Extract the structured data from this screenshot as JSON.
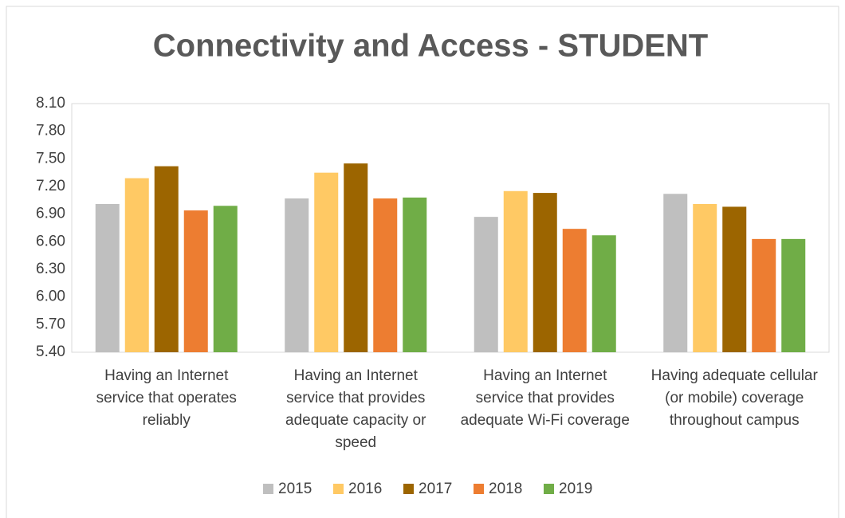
{
  "chart_data": {
    "type": "bar",
    "title": "Connectivity and Access - STUDENT",
    "categories": [
      "Having an Internet service that operates reliably",
      "Having an Internet service that provides adequate capacity or speed",
      "Having an Internet service that provides adequate Wi-Fi coverage",
      "Having adequate cellular (or mobile) coverage throughout campus"
    ],
    "series": [
      {
        "name": "2015",
        "color": "#bfbfbf",
        "values": [
          7.01,
          7.07,
          6.87,
          7.12
        ]
      },
      {
        "name": "2016",
        "color": "#ffc964",
        "values": [
          7.29,
          7.35,
          7.15,
          7.01
        ]
      },
      {
        "name": "2017",
        "color": "#9c6500",
        "values": [
          7.42,
          7.45,
          7.13,
          6.98
        ]
      },
      {
        "name": "2018",
        "color": "#ed7d31",
        "values": [
          6.94,
          7.07,
          6.74,
          6.63
        ]
      },
      {
        "name": "2019",
        "color": "#70ad47",
        "values": [
          6.99,
          7.08,
          6.67,
          6.63
        ]
      }
    ],
    "ylim": [
      5.4,
      8.1
    ],
    "yticks": [
      {
        "value": 5.4,
        "label": "5.40"
      },
      {
        "value": 5.7,
        "label": "5.70"
      },
      {
        "value": 6.0,
        "label": "6.00"
      },
      {
        "value": 6.3,
        "label": "6.30"
      },
      {
        "value": 6.6,
        "label": "6.60"
      },
      {
        "value": 6.9,
        "label": "6.90"
      },
      {
        "value": 7.2,
        "label": "7.20"
      },
      {
        "value": 7.5,
        "label": "7.50"
      },
      {
        "value": 7.8,
        "label": "7.80"
      },
      {
        "value": 8.1,
        "label": "8.10"
      }
    ],
    "grid": false,
    "legend": "bottom"
  }
}
